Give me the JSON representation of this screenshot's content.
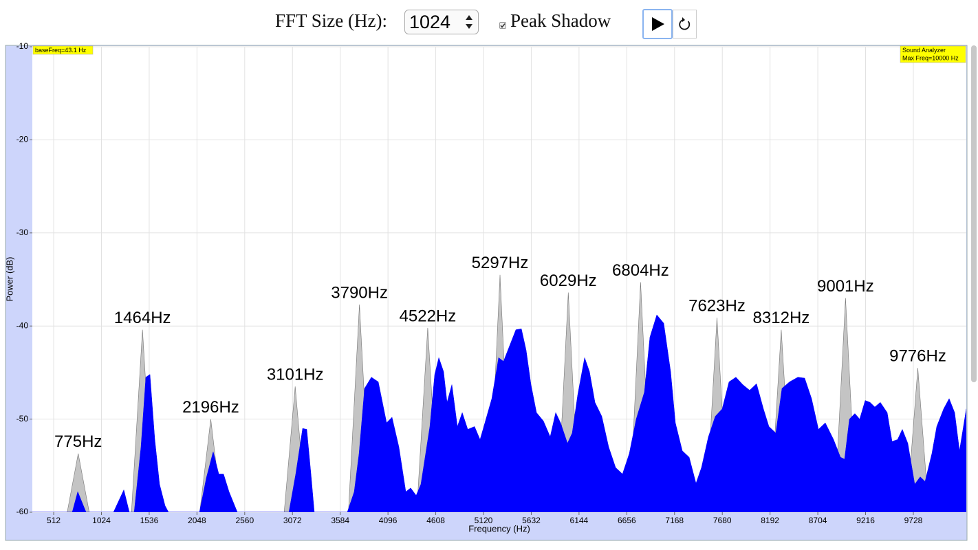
{
  "controls": {
    "fft_label": "FFT Size (Hz):",
    "fft_size": 1024,
    "peak_shadow_label": "Peak Shadow",
    "peak_shadow": true
  },
  "chart_data": {
    "type": "area",
    "xlabel": "Frequency (Hz)",
    "ylabel": "Power (dB)",
    "info_left": "baseFreq=43.1 Hz",
    "info_right": [
      "Sound Analyzer",
      "Max Freq=10000 Hz"
    ],
    "color": "#0000ff",
    "peak_color": "#c4c4c4",
    "grid": true,
    "xlim": [
      283,
      10296
    ],
    "ylim": [
      -60,
      -10
    ],
    "xticks": [
      512,
      1024,
      1536,
      2048,
      2560,
      3072,
      3584,
      4096,
      4608,
      5120,
      5632,
      6144,
      6656,
      7168,
      7680,
      8192,
      8704,
      9216,
      9728
    ],
    "yticks": [
      -60,
      -50,
      -40,
      -30,
      -20,
      -10
    ],
    "x": [
      283,
      711,
      770,
      859,
      1153,
      1264,
      1323,
      1375,
      1448,
      1500,
      1544,
      1596,
      1647,
      1706,
      1743,
      2075,
      2149,
      2222,
      2282,
      2333,
      2392,
      2481,
      3034,
      3107,
      3181,
      3225,
      3270,
      3306,
      3660,
      3734,
      3786,
      3845,
      3918,
      3992,
      4081,
      4139,
      4213,
      4287,
      4339,
      4398,
      4449,
      4545,
      4597,
      4641,
      4692,
      4729,
      4781,
      4840,
      4892,
      4951,
      5024,
      5083,
      5135,
      5209,
      5282,
      5334,
      5393,
      5467,
      5526,
      5577,
      5629,
      5688,
      5762,
      5835,
      5894,
      5946,
      6020,
      6071,
      6130,
      6204,
      6256,
      6315,
      6388,
      6462,
      6536,
      6610,
      6683,
      6757,
      6845,
      6904,
      6978,
      7052,
      7126,
      7177,
      7251,
      7325,
      7398,
      7457,
      7531,
      7605,
      7679,
      7752,
      7826,
      7900,
      7973,
      8047,
      8121,
      8180,
      8254,
      8320,
      8401,
      8490,
      8563,
      8637,
      8711,
      8784,
      8873,
      8947,
      8991,
      9043,
      9101,
      9153,
      9212,
      9264,
      9315,
      9374,
      9448,
      9500,
      9559,
      9610,
      9669,
      9743,
      9802,
      9854,
      9927,
      9979,
      10053,
      10112,
      10171,
      10223,
      10296
    ],
    "values": [
      -60,
      -60,
      -57.8,
      -60,
      -60,
      -57.6,
      -60,
      -60,
      -53.0,
      -45.5,
      -45.2,
      -52.2,
      -57.0,
      -59.3,
      -60,
      -60,
      -56.3,
      -53.5,
      -55.9,
      -55.9,
      -57.8,
      -60,
      -60,
      -55.9,
      -51.0,
      -51.1,
      -55.9,
      -60,
      -60,
      -57.8,
      -53.7,
      -46.7,
      -45.5,
      -46.0,
      -50.4,
      -49.8,
      -53.0,
      -57.8,
      -57.4,
      -58.2,
      -57.0,
      -50.8,
      -45.2,
      -43.4,
      -44.9,
      -48.2,
      -46.3,
      -50.8,
      -49.3,
      -51.1,
      -50.8,
      -52.2,
      -50.4,
      -47.8,
      -43.4,
      -43.8,
      -42.3,
      -40.4,
      -40.3,
      -42.6,
      -46.3,
      -49.3,
      -50.2,
      -51.9,
      -49.3,
      -50.4,
      -52.6,
      -51.5,
      -47.4,
      -43.4,
      -44.9,
      -48.2,
      -49.7,
      -53.0,
      -55.2,
      -55.9,
      -53.7,
      -50.0,
      -47.1,
      -41.2,
      -38.8,
      -39.7,
      -44.9,
      -50.4,
      -53.4,
      -54.1,
      -56.9,
      -55.2,
      -51.9,
      -49.7,
      -48.9,
      -46.0,
      -45.5,
      -46.3,
      -46.9,
      -46.2,
      -48.9,
      -50.8,
      -51.5,
      -46.7,
      -46.0,
      -45.5,
      -45.6,
      -47.8,
      -51.1,
      -50.4,
      -52.2,
      -54.1,
      -54.3,
      -50.0,
      -49.4,
      -50.0,
      -48.0,
      -48.2,
      -48.7,
      -48.2,
      -49.3,
      -52.4,
      -52.2,
      -51.1,
      -52.6,
      -57.0,
      -56.2,
      -56.7,
      -53.7,
      -50.8,
      -48.9,
      -47.8,
      -49.3,
      -53.4,
      -48.9
    ],
    "peaks": [
      {
        "x": 775,
        "y": -53.7,
        "label": "775Hz"
      },
      {
        "x": 1464,
        "y": -40.4,
        "label": "1464Hz"
      },
      {
        "x": 2196,
        "y": -50.0,
        "label": "2196Hz"
      },
      {
        "x": 3101,
        "y": -46.5,
        "label": "3101Hz"
      },
      {
        "x": 3790,
        "y": -37.7,
        "label": "3790Hz"
      },
      {
        "x": 4522,
        "y": -40.2,
        "label": "4522Hz"
      },
      {
        "x": 5297,
        "y": -34.5,
        "label": "5297Hz"
      },
      {
        "x": 6029,
        "y": -36.4,
        "label": "6029Hz"
      },
      {
        "x": 6804,
        "y": -35.3,
        "label": "6804Hz"
      },
      {
        "x": 7623,
        "y": -39.1,
        "label": "7623Hz"
      },
      {
        "x": 8312,
        "y": -40.4,
        "label": "8312Hz"
      },
      {
        "x": 9001,
        "y": -37.0,
        "label": "9001Hz"
      },
      {
        "x": 9776,
        "y": -44.5,
        "label": "9776Hz"
      }
    ]
  }
}
